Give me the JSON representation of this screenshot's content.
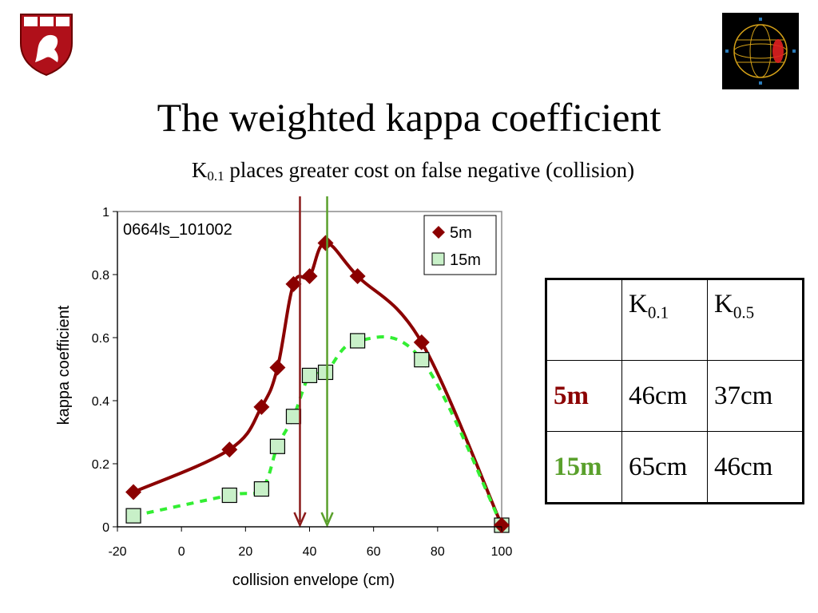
{
  "slide": {
    "title": "The weighted kappa coefficient",
    "subtitle": {
      "k_base": "K",
      "k_sub": "0.1",
      "rest": " places greater cost on false negative (collision)"
    }
  },
  "table": {
    "header": [
      {
        "base": "",
        "sub": ""
      },
      {
        "base": "K",
        "sub": "0.1"
      },
      {
        "base": "K",
        "sub": "0.5"
      }
    ],
    "rows": [
      {
        "label": "5m",
        "k01": "46cm",
        "k05": "37cm"
      },
      {
        "label": "15m",
        "k01": "65cm",
        "k05": "46cm"
      }
    ],
    "label_colors": {
      "5m": "#8b0000",
      "15m": "#5aa02c"
    }
  },
  "chart_data": {
    "type": "scatter",
    "annotation": "0664ls_101002",
    "xlabel": "collision envelope (cm)",
    "ylabel": "kappa coefficient",
    "xlim": [
      -20,
      100
    ],
    "ylim": [
      0,
      1
    ],
    "xticks": [
      -20,
      0,
      20,
      40,
      60,
      80,
      100
    ],
    "yticks": [
      0,
      0.2,
      0.4,
      0.6,
      0.8,
      1
    ],
    "ytick_labels": [
      "0",
      "0.2",
      "0.4",
      "0.6",
      "0.8",
      "1"
    ],
    "legend_position": "top-right",
    "series": [
      {
        "name": "5m",
        "marker": "diamond",
        "color": "#8b0000",
        "line_style": "solid",
        "x": [
          -15,
          15,
          25,
          30,
          35,
          40,
          45,
          55,
          75,
          100
        ],
        "y": [
          0.11,
          0.245,
          0.38,
          0.505,
          0.77,
          0.795,
          0.9,
          0.795,
          0.585,
          0.005
        ]
      },
      {
        "name": "15m",
        "marker": "square",
        "color": "#c8f0c8",
        "line_color": "#33ee33",
        "line_style": "dashed",
        "x": [
          -15,
          15,
          25,
          30,
          35,
          40,
          45,
          55,
          75,
          100
        ],
        "y": [
          0.035,
          0.1,
          0.12,
          0.255,
          0.35,
          0.48,
          0.49,
          0.59,
          0.53,
          0.005
        ]
      }
    ],
    "vertical_lines": [
      {
        "x": 37,
        "color": "#8b1a1a"
      },
      {
        "x": 45.5,
        "color": "#5aa02c"
      }
    ]
  }
}
